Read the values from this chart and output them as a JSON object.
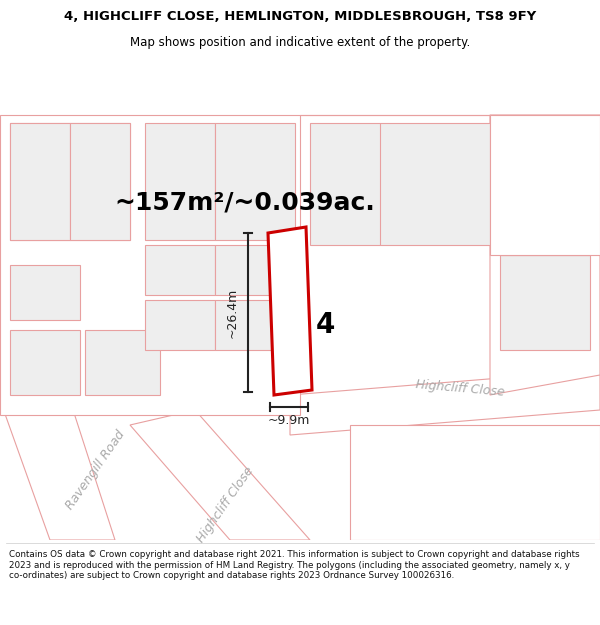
{
  "title_line1": "4, HIGHCLIFF CLOSE, HEMLINGTON, MIDDLESBROUGH, TS8 9FY",
  "title_line2": "Map shows position and indicative extent of the property.",
  "area_text": "~157m²/~0.039ac.",
  "property_number": "4",
  "dim_height": "~26.4m",
  "dim_width": "~9.9m",
  "road_label1": "Ravengill Road",
  "road_label2": "Highcliff Close",
  "road_label3": "Highcliff Close",
  "footer_text": "Contains OS data © Crown copyright and database right 2021. This information is subject to Crown copyright and database rights 2023 and is reproduced with the permission of HM Land Registry. The polygons (including the associated geometry, namely x, y co-ordinates) are subject to Crown copyright and database rights 2023 Ordnance Survey 100026316.",
  "bg_color": "#ffffff",
  "map_bg": "#ffffff",
  "bldg_fill": "#eeeeee",
  "bldg_stroke": "#e8a0a0",
  "road_fill": "#ffffff",
  "road_stroke": "#e8a0a0",
  "parcel_stroke": "#e8a0a0",
  "property_stroke": "#cc0000",
  "property_fill": "#ffffff",
  "dim_color": "#222222",
  "road_label_color": "#aaaaaa",
  "title_color": "#000000",
  "footer_color": "#111111",
  "title_fs": 9.5,
  "subtitle_fs": 8.5,
  "area_fs": 18,
  "propnum_fs": 20,
  "dim_fs": 9,
  "road_fs": 9,
  "footer_fs": 6.3
}
